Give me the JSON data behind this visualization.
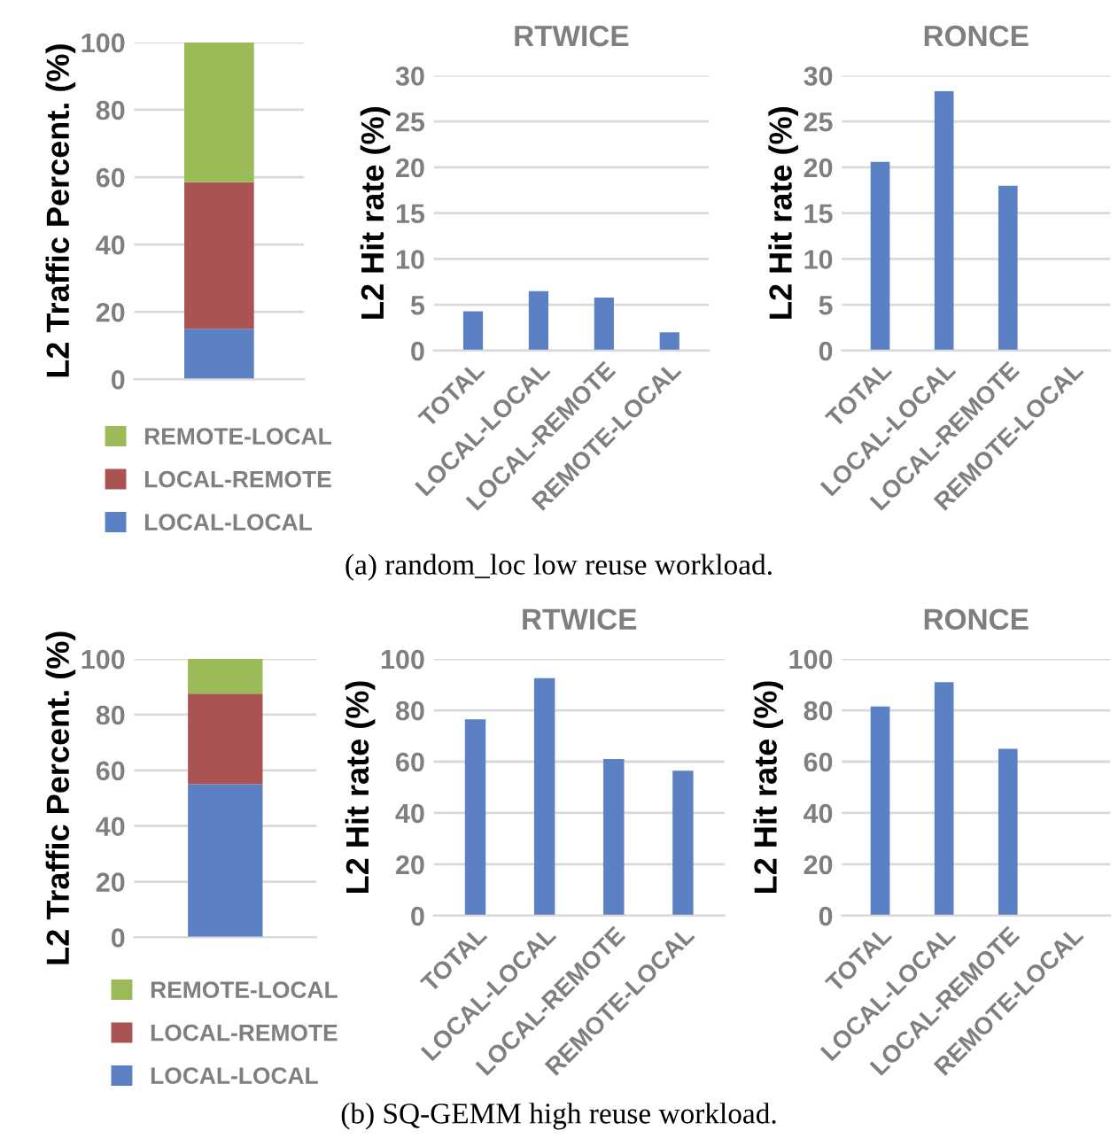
{
  "chart_data": [
    {
      "type": "bar",
      "stacked": true,
      "categories": [
        null
      ],
      "ylabel": "L2 Traffic Percent. (%)",
      "ylim": [
        0,
        100
      ],
      "yticks": [
        0,
        20,
        40,
        60,
        80,
        100
      ],
      "grid": "y",
      "legend": "bottom",
      "series": [
        {
          "name": "LOCAL-LOCAL",
          "color": "#5b80c4",
          "values": [
            15
          ]
        },
        {
          "name": "LOCAL-REMOTE",
          "color": "#a95452",
          "values": [
            43.5
          ]
        },
        {
          "name": "REMOTE-LOCAL",
          "color": "#9bbb59",
          "values": [
            41.5
          ]
        }
      ],
      "annotations": [
        "(a) random_loc low reuse workload."
      ]
    },
    {
      "type": "bar",
      "title": "RTWICE",
      "categories": [
        "TOTAL",
        "LOCAL-LOCAL",
        "LOCAL-REMOTE",
        "REMOTE-LOCAL"
      ],
      "ylabel": "L2 Hit rate (%)",
      "ylim": [
        0,
        30
      ],
      "yticks": [
        0,
        5,
        10,
        15,
        20,
        25,
        30
      ],
      "grid": "y",
      "series": [
        {
          "color": "#5b80c4",
          "values": [
            4.3,
            6.5,
            5.8,
            2.0
          ]
        }
      ]
    },
    {
      "type": "bar",
      "title": "RONCE",
      "categories": [
        "TOTAL",
        "LOCAL-LOCAL",
        "LOCAL-REMOTE",
        "REMOTE-LOCAL"
      ],
      "ylabel": "L2 Hit rate (%)",
      "ylim": [
        0,
        30
      ],
      "yticks": [
        0,
        5,
        10,
        15,
        20,
        25,
        30
      ],
      "grid": "y",
      "series": [
        {
          "color": "#5b80c4",
          "values": [
            20.6,
            28.3,
            18.0,
            0
          ]
        }
      ]
    },
    {
      "type": "bar",
      "stacked": true,
      "categories": [
        null
      ],
      "ylabel": "L2 Traffic Percent. (%)",
      "ylim": [
        0,
        100
      ],
      "yticks": [
        0,
        20,
        40,
        60,
        80,
        100
      ],
      "grid": "y",
      "legend": "bottom",
      "series": [
        {
          "name": "LOCAL-LOCAL",
          "color": "#5b80c4",
          "values": [
            55
          ]
        },
        {
          "name": "LOCAL-REMOTE",
          "color": "#a95452",
          "values": [
            32.5
          ]
        },
        {
          "name": "REMOTE-LOCAL",
          "color": "#9bbb59",
          "values": [
            12.5
          ]
        }
      ],
      "annotations": [
        "(b) SQ-GEMM high reuse workload."
      ]
    },
    {
      "type": "bar",
      "title": "RTWICE",
      "categories": [
        "TOTAL",
        "LOCAL-LOCAL",
        "LOCAL-REMOTE",
        "REMOTE-LOCAL"
      ],
      "ylabel": "L2 Hit rate (%)",
      "ylim": [
        0,
        100
      ],
      "yticks": [
        0,
        20,
        40,
        60,
        80,
        100
      ],
      "grid": "y",
      "series": [
        {
          "color": "#5b80c4",
          "values": [
            76.5,
            92.5,
            61,
            56.5
          ]
        }
      ]
    },
    {
      "type": "bar",
      "title": "RONCE",
      "categories": [
        "TOTAL",
        "LOCAL-LOCAL",
        "LOCAL-REMOTE",
        "REMOTE-LOCAL"
      ],
      "ylabel": "L2 Hit rate (%)",
      "ylim": [
        0,
        100
      ],
      "yticks": [
        0,
        20,
        40,
        60,
        80,
        100
      ],
      "grid": "y",
      "series": [
        {
          "color": "#5b80c4",
          "values": [
            81.5,
            91,
            65,
            0
          ]
        }
      ]
    }
  ]
}
